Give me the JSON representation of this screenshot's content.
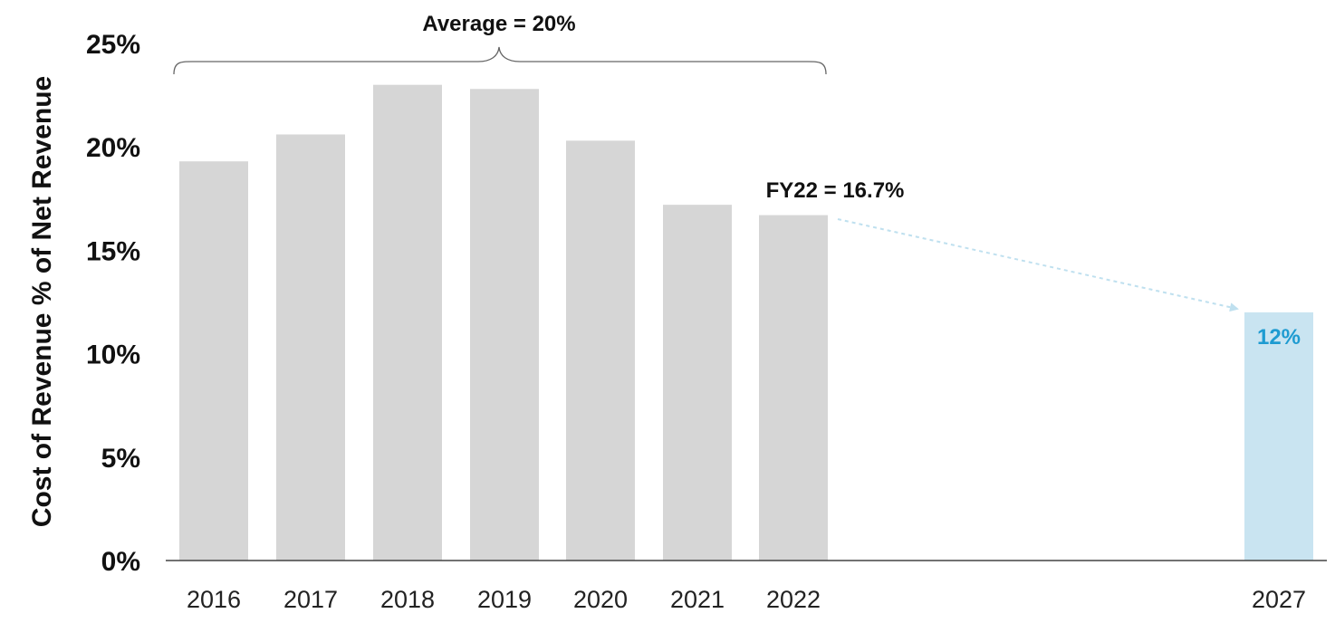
{
  "chart_data": {
    "type": "bar",
    "title": "",
    "xlabel": "",
    "ylabel": "Cost of Revenue % of Net Revenue",
    "ylim": [
      0,
      25
    ],
    "yticks": [
      "0%",
      "5%",
      "10%",
      "15%",
      "20%",
      "25%"
    ],
    "ytick_values": [
      0,
      5,
      10,
      15,
      20,
      25
    ],
    "grid": false,
    "categories": [
      "2016",
      "2017",
      "2018",
      "2019",
      "2020",
      "2021",
      "2022",
      "2027"
    ],
    "values": [
      19.3,
      20.6,
      23.0,
      22.8,
      20.3,
      17.2,
      16.7,
      12.0
    ],
    "bar_colors": [
      "#d6d6d6",
      "#d6d6d6",
      "#d6d6d6",
      "#d6d6d6",
      "#d6d6d6",
      "#d6d6d6",
      "#d6d6d6",
      "#c9e4f1"
    ],
    "data_labels": {
      "2027": "12%"
    },
    "annotations": {
      "average": "Average = 20%",
      "fy22": "FY22 = 16.7%"
    },
    "colors": {
      "bar": "#d6d6d6",
      "target_bar": "#c9e4f1",
      "target_label": "#1e9bd1",
      "arrow": "#bfe0ef",
      "axis": "#444444",
      "brace": "#666666"
    }
  }
}
